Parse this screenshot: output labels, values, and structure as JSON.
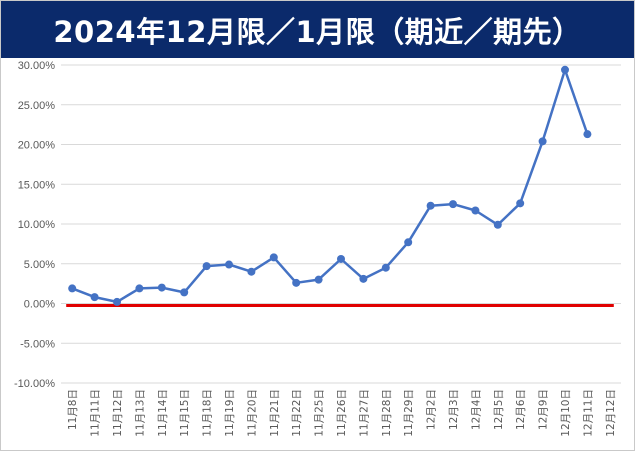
{
  "colors": {
    "title_background": "#0b2a6b",
    "title_text": "#ffffff",
    "series_line": "#4472c4",
    "zero_line": "#e00000",
    "gridline": "#d9d9d9",
    "tick_text": "#595959"
  },
  "chart_data": {
    "type": "line",
    "title": "2024年12月限／1月限（期近／期先）",
    "xlabel": "",
    "ylabel": "",
    "ylim": [
      -0.1,
      0.3
    ],
    "yticks": [
      -0.1,
      -0.05,
      0.0,
      0.05,
      0.1,
      0.15,
      0.2,
      0.25,
      0.3
    ],
    "ytick_labels": [
      "-10.00%",
      "-5.00%",
      "0.00%",
      "5.00%",
      "10.00%",
      "15.00%",
      "20.00%",
      "25.00%",
      "30.00%"
    ],
    "grid": true,
    "legend": "none",
    "categories": [
      "11月8日",
      "11月11日",
      "11月12日",
      "11月13日",
      "11月14日",
      "11月15日",
      "11月18日",
      "11月19日",
      "11月20日",
      "11月21日",
      "11月22日",
      "11月25日",
      "11月26日",
      "11月27日",
      "11月28日",
      "11月29日",
      "12月2日",
      "12月3日",
      "12月4日",
      "12月5日",
      "12月6日",
      "12月9日",
      "12月10日",
      "12月11日",
      "12月12日"
    ],
    "series": [
      {
        "values": [
          0.019,
          0.008,
          0.002,
          0.019,
          0.02,
          0.014,
          0.047,
          0.049,
          0.04,
          0.058,
          0.026,
          0.03,
          0.056,
          0.031,
          0.045,
          0.077,
          0.123,
          0.125,
          0.117,
          0.099,
          0.126,
          0.204,
          0.294,
          0.213,
          null
        ]
      }
    ],
    "reference_line": {
      "value": 0.0
    }
  }
}
